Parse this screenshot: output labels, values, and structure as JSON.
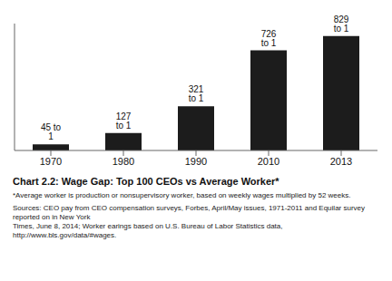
{
  "chart_data": {
    "type": "bar",
    "title": "Chart 2.2: Wage Gap: Top 100 CEOs vs Average Worker*",
    "categories": [
      "1970",
      "1980",
      "1990",
      "2010",
      "2013"
    ],
    "values": [
      45,
      127,
      321,
      726,
      829
    ],
    "value_labels": [
      "45 to 1",
      "127 to 1",
      "321 to 1",
      "726 to 1",
      "829 to 1"
    ],
    "data_labels": true,
    "color": "#1c1c1c",
    "ylim": [
      0,
      920
    ],
    "tick_labels": "x",
    "annotations": [
      "*Average worker is production or nonsupervisory worker, based on weekly wages multiplied by 52 weeks.",
      "Sources: CEO pay from CEO compensation surveys, Forbes, April/May issues, 1971-2011 and Equilar survey reported on in New York\nTimes, June 8, 2014; Worker earings based on U.S. Bureau of Labor Statistics data, http://www.bls.gov/data/#wages."
    ]
  }
}
